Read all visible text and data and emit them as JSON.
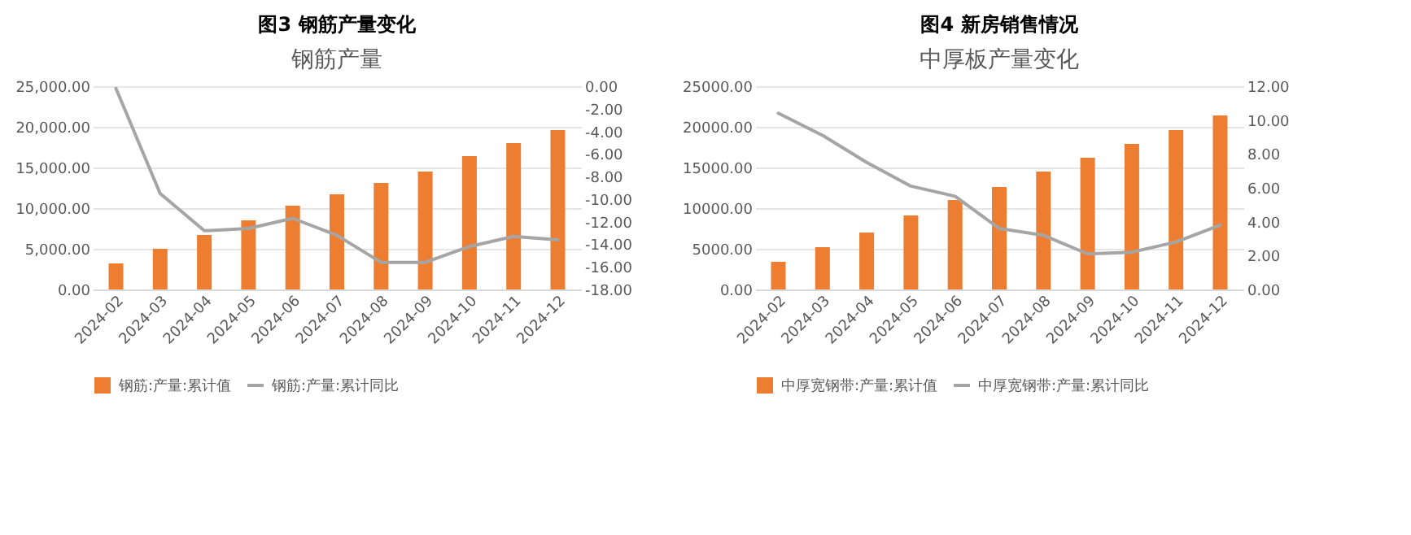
{
  "chart_data": [
    {
      "type": "bar",
      "title": "图3 钢筋产量变化",
      "subtitle": "钢筋产量",
      "categories": [
        "2024-02",
        "2024-03",
        "2024-04",
        "2024-05",
        "2024-06",
        "2024-07",
        "2024-08",
        "2024-09",
        "2024-10",
        "2024-11",
        "2024-12"
      ],
      "series": [
        {
          "name": "钢筋:产量:累计值",
          "color": "#ed7d31",
          "values": [
            3200,
            5000,
            6700,
            8500,
            10300,
            11700,
            13100,
            14500,
            16400,
            18000,
            19600
          ]
        },
        {
          "name": "钢筋:产量:累计同比",
          "type": "line",
          "axis": "y2",
          "color": "#a5a5a5",
          "values": [
            -0.2,
            -9.5,
            -12.8,
            -12.6,
            -11.7,
            -13.2,
            -15.6,
            -15.6,
            -14.2,
            -13.3,
            -13.6
          ]
        }
      ],
      "ylim": [
        0,
        25000
      ],
      "yticks": [
        {
          "value": 0,
          "label": "0.00"
        },
        {
          "value": 5000,
          "label": "5,000.00"
        },
        {
          "value": 10000,
          "label": "10,000.00"
        },
        {
          "value": 15000,
          "label": "15,000.00"
        },
        {
          "value": 20000,
          "label": "20,000.00"
        },
        {
          "value": 25000,
          "label": "25,000.00"
        }
      ],
      "y2lim": [
        -18,
        0
      ],
      "y2ticks": [
        {
          "value": 0,
          "label": "0.00"
        },
        {
          "value": -2,
          "label": "-2.00"
        },
        {
          "value": -4,
          "label": "-4.00"
        },
        {
          "value": -6,
          "label": "-6.00"
        },
        {
          "value": -8,
          "label": "-8.00"
        },
        {
          "value": -10,
          "label": "-10.00"
        },
        {
          "value": -12,
          "label": "-12.00"
        },
        {
          "value": -14,
          "label": "-14.00"
        },
        {
          "value": -16,
          "label": "-16.00"
        },
        {
          "value": -18,
          "label": "-18.00"
        }
      ],
      "grid": "y",
      "legend": "bottom",
      "marker": "none",
      "line_style": "solid"
    },
    {
      "type": "bar",
      "title": "图4 新房销售情况",
      "subtitle": "中厚板产量变化",
      "categories": [
        "2024-02",
        "2024-03",
        "2024-04",
        "2024-05",
        "2024-06",
        "2024-07",
        "2024-08",
        "2024-09",
        "2024-10",
        "2024-11",
        "2024-12"
      ],
      "series": [
        {
          "name": "中厚宽钢带:产量:累计值",
          "color": "#ed7d31",
          "values": [
            3400,
            5200,
            7000,
            9100,
            11000,
            12600,
            14500,
            16200,
            17900,
            19600,
            21400
          ]
        },
        {
          "name": "中厚宽钢带:产量:累计同比",
          "type": "line",
          "axis": "y2",
          "color": "#a5a5a5",
          "values": [
            10.4,
            9.1,
            7.5,
            6.1,
            5.5,
            3.6,
            3.2,
            2.1,
            2.2,
            2.8,
            3.8
          ]
        }
      ],
      "ylim": [
        0,
        25000
      ],
      "yticks": [
        {
          "value": 0,
          "label": "0.00"
        },
        {
          "value": 5000,
          "label": "5000.00"
        },
        {
          "value": 10000,
          "label": "10000.00"
        },
        {
          "value": 15000,
          "label": "15000.00"
        },
        {
          "value": 20000,
          "label": "20000.00"
        },
        {
          "value": 25000,
          "label": "25000.00"
        }
      ],
      "y2lim": [
        0,
        12
      ],
      "y2ticks": [
        {
          "value": 0,
          "label": "0.00"
        },
        {
          "value": 2,
          "label": "2.00"
        },
        {
          "value": 4,
          "label": "4.00"
        },
        {
          "value": 6,
          "label": "6.00"
        },
        {
          "value": 8,
          "label": "8.00"
        },
        {
          "value": 10,
          "label": "10.00"
        },
        {
          "value": 12,
          "label": "12.00"
        }
      ],
      "grid": "y",
      "legend": "bottom",
      "marker": "none",
      "line_style": "solid"
    }
  ]
}
